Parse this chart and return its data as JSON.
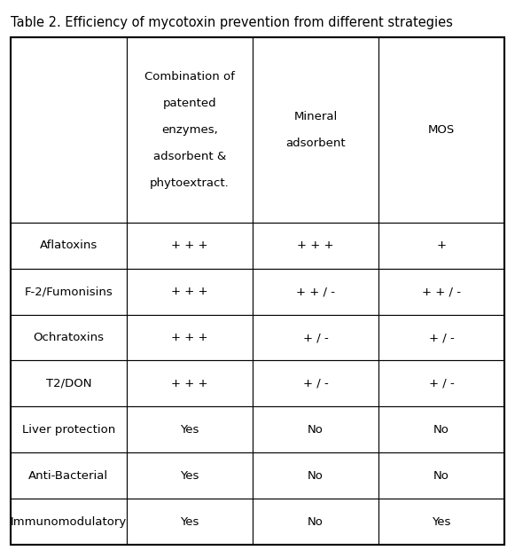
{
  "title": "Table 2. Efficiency of mycotoxin prevention from different strategies",
  "title_fontsize": 10.5,
  "col_headers": [
    "Combination of\n\npatented\n\nenzymes,\n\nadsorbent &\n\nphytoextract.",
    "Mineral\n\nadsorbent",
    "MOS"
  ],
  "row_labels": [
    "Aflatoxins",
    "F-2/Fumonisins",
    "Ochratoxins",
    "T2/DON",
    "Liver protection",
    "Anti-Bacterial",
    "Immunomodulatory"
  ],
  "table_data": [
    [
      "+ + +",
      "+ + +",
      "+"
    ],
    [
      "+ + +",
      "+ + / -",
      "+ + / -"
    ],
    [
      "+ + +",
      "+ / -",
      "+ / -"
    ],
    [
      "+ + +",
      "+ / -",
      "+ / -"
    ],
    [
      "Yes",
      "No",
      "No"
    ],
    [
      "Yes",
      "No",
      "No"
    ],
    [
      "Yes",
      "No",
      "Yes"
    ]
  ],
  "background_color": "#ffffff",
  "border_color": "#000000",
  "text_color": "#000000",
  "font_size": 9.5,
  "header_font_size": 9.5,
  "row_label_font_size": 9.5
}
